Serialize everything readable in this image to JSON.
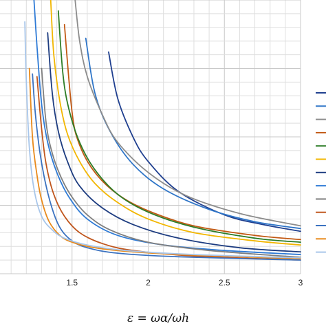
{
  "chart_data": {
    "type": "line",
    "title": "",
    "xlabel": "ε = ωα/ωh",
    "ylabel": "",
    "xlim": [
      1.0,
      3.0
    ],
    "x_ticks": [
      "1.5",
      "2",
      "2.5",
      "3"
    ],
    "grid": true,
    "legend": "right",
    "series": [
      {
        "color": "#1f3f8f",
        "points": [
          [
            1.74,
            0.81
          ],
          [
            1.8,
            0.64
          ],
          [
            1.9,
            0.5
          ],
          [
            2.0,
            0.41
          ],
          [
            2.2,
            0.3
          ],
          [
            2.5,
            0.215
          ],
          [
            2.75,
            0.18
          ],
          [
            3.0,
            0.155
          ]
        ]
      },
      {
        "color": "#2e75c8",
        "points": [
          [
            1.59,
            0.86
          ],
          [
            1.65,
            0.66
          ],
          [
            1.75,
            0.52
          ],
          [
            1.9,
            0.4
          ],
          [
            2.1,
            0.31
          ],
          [
            2.4,
            0.235
          ],
          [
            2.7,
            0.19
          ],
          [
            3.0,
            0.165
          ]
        ]
      },
      {
        "color": "#8c8c8c",
        "points": [
          [
            1.52,
            1.0
          ],
          [
            1.55,
            0.85
          ],
          [
            1.6,
            0.72
          ],
          [
            1.7,
            0.58
          ],
          [
            1.8,
            0.48
          ],
          [
            2.0,
            0.37
          ],
          [
            2.25,
            0.285
          ],
          [
            2.6,
            0.22
          ],
          [
            3.0,
            0.175
          ]
        ]
      },
      {
        "color": "#c25a15",
        "points": [
          [
            1.45,
            0.91
          ],
          [
            1.5,
            0.59
          ],
          [
            1.55,
            0.47
          ],
          [
            1.65,
            0.37
          ],
          [
            1.8,
            0.29
          ],
          [
            2.0,
            0.23
          ],
          [
            2.3,
            0.175
          ],
          [
            2.7,
            0.14
          ],
          [
            3.0,
            0.125
          ]
        ]
      },
      {
        "color": "#2d7d27",
        "points": [
          [
            1.41,
            0.96
          ],
          [
            1.44,
            0.73
          ],
          [
            1.48,
            0.6
          ],
          [
            1.55,
            0.48
          ],
          [
            1.65,
            0.38
          ],
          [
            1.8,
            0.29
          ],
          [
            2.0,
            0.225
          ],
          [
            2.3,
            0.17
          ],
          [
            2.7,
            0.13
          ],
          [
            3.0,
            0.115
          ]
        ]
      },
      {
        "color": "#f2b600",
        "points": [
          [
            1.36,
            1.0
          ],
          [
            1.38,
            0.8
          ],
          [
            1.42,
            0.63
          ],
          [
            1.47,
            0.51
          ],
          [
            1.55,
            0.41
          ],
          [
            1.65,
            0.33
          ],
          [
            1.8,
            0.26
          ],
          [
            2.0,
            0.2
          ],
          [
            2.3,
            0.15
          ],
          [
            2.7,
            0.12
          ],
          [
            3.0,
            0.105
          ]
        ]
      },
      {
        "color": "#1d3c80",
        "points": [
          [
            1.34,
            0.88
          ],
          [
            1.37,
            0.66
          ],
          [
            1.41,
            0.52
          ],
          [
            1.47,
            0.41
          ],
          [
            1.55,
            0.32
          ],
          [
            1.7,
            0.24
          ],
          [
            1.9,
            0.18
          ],
          [
            2.2,
            0.13
          ],
          [
            2.6,
            0.095
          ],
          [
            3.0,
            0.08
          ]
        ]
      },
      {
        "color": "#2f7bd6",
        "points": [
          [
            1.25,
            1.0
          ],
          [
            1.27,
            0.83
          ],
          [
            1.3,
            0.62
          ],
          [
            1.34,
            0.48
          ],
          [
            1.4,
            0.37
          ],
          [
            1.48,
            0.28
          ],
          [
            1.6,
            0.2
          ],
          [
            1.8,
            0.14
          ],
          [
            2.1,
            0.105
          ],
          [
            2.5,
            0.085
          ],
          [
            3.0,
            0.07
          ]
        ]
      },
      {
        "color": "#7f7f7f",
        "points": [
          [
            1.3,
            0.75
          ],
          [
            1.33,
            0.55
          ],
          [
            1.37,
            0.44
          ],
          [
            1.43,
            0.35
          ],
          [
            1.5,
            0.28
          ],
          [
            1.6,
            0.215
          ],
          [
            1.75,
            0.16
          ],
          [
            2.0,
            0.115
          ],
          [
            2.4,
            0.085
          ],
          [
            3.0,
            0.06
          ]
        ]
      },
      {
        "color": "#c0561d",
        "points": [
          [
            1.27,
            0.72
          ],
          [
            1.3,
            0.53
          ],
          [
            1.33,
            0.4
          ],
          [
            1.38,
            0.29
          ],
          [
            1.45,
            0.21
          ],
          [
            1.55,
            0.15
          ],
          [
            1.7,
            0.11
          ],
          [
            1.9,
            0.085
          ],
          [
            2.3,
            0.065
          ],
          [
            3.0,
            0.05
          ]
        ]
      },
      {
        "color": "#3b72c0",
        "points": [
          [
            1.24,
            0.73
          ],
          [
            1.26,
            0.58
          ],
          [
            1.29,
            0.44
          ],
          [
            1.33,
            0.32
          ],
          [
            1.38,
            0.22
          ],
          [
            1.43,
            0.16
          ],
          [
            1.5,
            0.12
          ],
          [
            1.6,
            0.095
          ],
          [
            1.8,
            0.075
          ],
          [
            2.2,
            0.062
          ],
          [
            3.0,
            0.05
          ]
        ]
      },
      {
        "color": "#e88a1c",
        "points": [
          [
            1.22,
            0.75
          ],
          [
            1.24,
            0.5
          ],
          [
            1.27,
            0.36
          ],
          [
            1.3,
            0.27
          ],
          [
            1.35,
            0.19
          ],
          [
            1.42,
            0.14
          ],
          [
            1.5,
            0.115
          ],
          [
            1.65,
            0.095
          ],
          [
            1.9,
            0.08
          ],
          [
            2.3,
            0.068
          ],
          [
            3.0,
            0.055
          ]
        ]
      },
      {
        "color": "#a8c6ea",
        "points": [
          [
            1.19,
            0.92
          ],
          [
            1.2,
            0.7
          ],
          [
            1.22,
            0.46
          ],
          [
            1.25,
            0.31
          ],
          [
            1.3,
            0.21
          ],
          [
            1.37,
            0.16
          ],
          [
            1.45,
            0.13
          ],
          [
            1.6,
            0.105
          ],
          [
            1.85,
            0.085
          ],
          [
            2.3,
            0.07
          ],
          [
            3.0,
            0.058
          ]
        ]
      }
    ]
  }
}
